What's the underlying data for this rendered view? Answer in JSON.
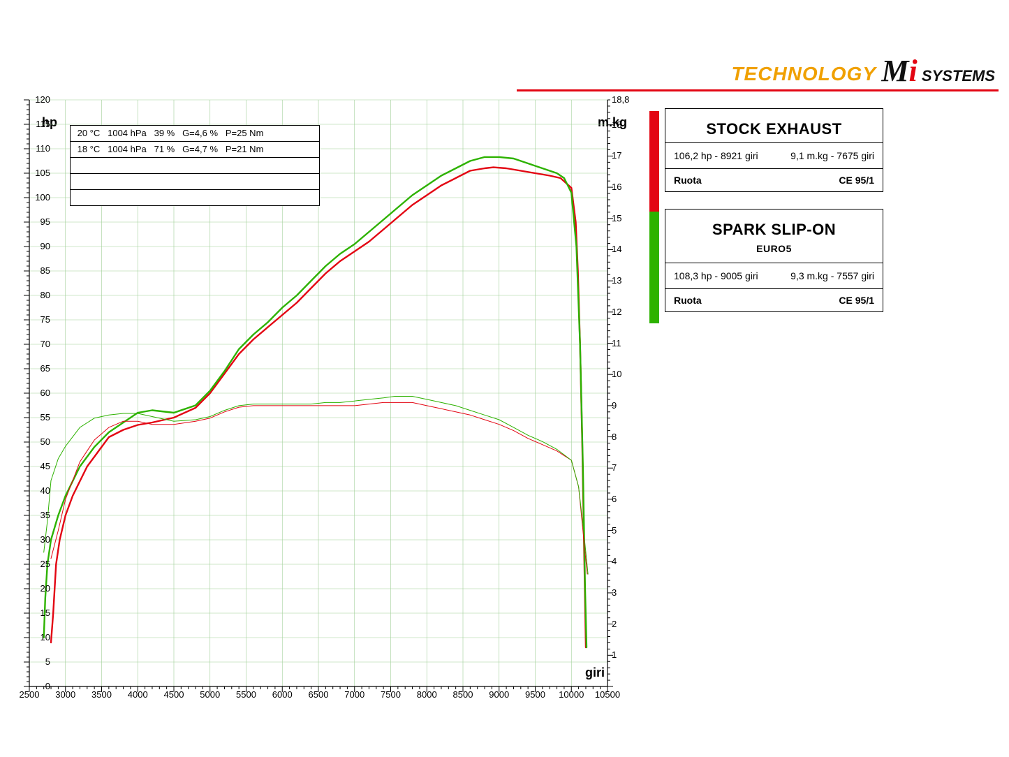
{
  "brand": {
    "tech": "TECHNOLOGY",
    "logo_main": "M",
    "logo_i": "i",
    "logo_sys": "SYSTEMS"
  },
  "chart": {
    "type": "line",
    "background_color": "#ffffff",
    "grid_color": "#9fcf96",
    "grid_width": 0.6,
    "tick_color": "#000000",
    "x": {
      "label": "giri",
      "min": 2500,
      "max": 10500,
      "step": 500,
      "minor": 100
    },
    "y_left": {
      "label": "hp",
      "min": 0,
      "max": 120,
      "step": 5,
      "minor": 1
    },
    "y_right": {
      "label": "m.kg",
      "min": 0,
      "max": 18.8,
      "step": 1,
      "minor": 0.2,
      "top_label": "18,8"
    },
    "hp_line_width": 2.4,
    "torque_line_width": 1.0,
    "colors": {
      "red": "#e30613",
      "green": "#2db200"
    },
    "series": [
      {
        "name": "hp_stock",
        "axis": "left",
        "color": "#e30613",
        "width": 2.4,
        "points": [
          [
            2800,
            9
          ],
          [
            2830,
            15
          ],
          [
            2870,
            25
          ],
          [
            2920,
            30
          ],
          [
            3000,
            35
          ],
          [
            3100,
            39
          ],
          [
            3200,
            42
          ],
          [
            3300,
            45
          ],
          [
            3400,
            47
          ],
          [
            3500,
            49
          ],
          [
            3600,
            51
          ],
          [
            3800,
            52.5
          ],
          [
            4000,
            53.5
          ],
          [
            4200,
            54
          ],
          [
            4500,
            55
          ],
          [
            4800,
            57
          ],
          [
            5000,
            60
          ],
          [
            5200,
            64
          ],
          [
            5400,
            68
          ],
          [
            5600,
            71
          ],
          [
            5800,
            73.5
          ],
          [
            6000,
            76
          ],
          [
            6200,
            78.5
          ],
          [
            6400,
            81.5
          ],
          [
            6600,
            84.5
          ],
          [
            6800,
            87
          ],
          [
            7000,
            89
          ],
          [
            7200,
            91
          ],
          [
            7400,
            93.5
          ],
          [
            7600,
            96
          ],
          [
            7800,
            98.5
          ],
          [
            8000,
            100.5
          ],
          [
            8200,
            102.5
          ],
          [
            8400,
            104
          ],
          [
            8600,
            105.5
          ],
          [
            8800,
            106
          ],
          [
            8921,
            106.2
          ],
          [
            9100,
            106
          ],
          [
            9300,
            105.5
          ],
          [
            9500,
            105
          ],
          [
            9700,
            104.5
          ],
          [
            9850,
            104
          ],
          [
            10000,
            102
          ],
          [
            10060,
            95
          ],
          [
            10090,
            85
          ],
          [
            10120,
            70
          ],
          [
            10150,
            50
          ],
          [
            10180,
            25
          ],
          [
            10200,
            8
          ]
        ]
      },
      {
        "name": "hp_slipon",
        "axis": "left",
        "color": "#2db200",
        "width": 2.4,
        "points": [
          [
            2700,
            10
          ],
          [
            2720,
            18
          ],
          [
            2750,
            25
          ],
          [
            2800,
            30
          ],
          [
            2900,
            35
          ],
          [
            3000,
            39
          ],
          [
            3100,
            42
          ],
          [
            3200,
            45
          ],
          [
            3400,
            49
          ],
          [
            3600,
            52
          ],
          [
            3800,
            54
          ],
          [
            4000,
            56
          ],
          [
            4200,
            56.5
          ],
          [
            4500,
            56
          ],
          [
            4800,
            57.5
          ],
          [
            5000,
            60.5
          ],
          [
            5200,
            64.5
          ],
          [
            5400,
            69
          ],
          [
            5600,
            72
          ],
          [
            5800,
            74.5
          ],
          [
            6000,
            77.5
          ],
          [
            6200,
            80
          ],
          [
            6400,
            83
          ],
          [
            6600,
            86
          ],
          [
            6800,
            88.5
          ],
          [
            7000,
            90.5
          ],
          [
            7200,
            93
          ],
          [
            7400,
            95.5
          ],
          [
            7600,
            98
          ],
          [
            7800,
            100.5
          ],
          [
            8000,
            102.5
          ],
          [
            8200,
            104.5
          ],
          [
            8400,
            106
          ],
          [
            8600,
            107.5
          ],
          [
            8800,
            108.3
          ],
          [
            9005,
            108.3
          ],
          [
            9200,
            108
          ],
          [
            9400,
            107
          ],
          [
            9600,
            106
          ],
          [
            9800,
            105
          ],
          [
            9900,
            104
          ],
          [
            10000,
            101
          ],
          [
            10070,
            90
          ],
          [
            10120,
            70
          ],
          [
            10160,
            45
          ],
          [
            10190,
            20
          ],
          [
            10210,
            8
          ]
        ]
      },
      {
        "name": "torque_stock",
        "axis": "right",
        "color": "#e30613",
        "width": 1.0,
        "points": [
          [
            2800,
            4.1
          ],
          [
            2900,
            5.0
          ],
          [
            3000,
            6.0
          ],
          [
            3200,
            7.2
          ],
          [
            3400,
            7.9
          ],
          [
            3600,
            8.3
          ],
          [
            3800,
            8.5
          ],
          [
            4000,
            8.5
          ],
          [
            4200,
            8.4
          ],
          [
            4500,
            8.4
          ],
          [
            4800,
            8.5
          ],
          [
            5000,
            8.6
          ],
          [
            5200,
            8.8
          ],
          [
            5400,
            8.95
          ],
          [
            5600,
            9.0
          ],
          [
            5800,
            9.0
          ],
          [
            6000,
            9.0
          ],
          [
            6200,
            9.0
          ],
          [
            6400,
            9.0
          ],
          [
            6600,
            9.0
          ],
          [
            6800,
            9.0
          ],
          [
            7000,
            9.0
          ],
          [
            7200,
            9.05
          ],
          [
            7400,
            9.1
          ],
          [
            7600,
            9.1
          ],
          [
            7675,
            9.1
          ],
          [
            7800,
            9.1
          ],
          [
            8000,
            9.0
          ],
          [
            8200,
            8.9
          ],
          [
            8400,
            8.8
          ],
          [
            8600,
            8.7
          ],
          [
            8800,
            8.55
          ],
          [
            9000,
            8.4
          ],
          [
            9200,
            8.2
          ],
          [
            9400,
            7.95
          ],
          [
            9600,
            7.75
          ],
          [
            9800,
            7.55
          ],
          [
            10000,
            7.25
          ],
          [
            10100,
            6.4
          ],
          [
            10160,
            5.0
          ],
          [
            10220,
            3.6
          ]
        ]
      },
      {
        "name": "torque_slipon",
        "axis": "right",
        "color": "#2db200",
        "width": 1.0,
        "points": [
          [
            2700,
            4.3
          ],
          [
            2750,
            5.3
          ],
          [
            2800,
            6.6
          ],
          [
            2900,
            7.3
          ],
          [
            3000,
            7.7
          ],
          [
            3200,
            8.3
          ],
          [
            3400,
            8.6
          ],
          [
            3600,
            8.7
          ],
          [
            3800,
            8.75
          ],
          [
            4000,
            8.75
          ],
          [
            4200,
            8.65
          ],
          [
            4500,
            8.5
          ],
          [
            4800,
            8.55
          ],
          [
            5000,
            8.65
          ],
          [
            5200,
            8.85
          ],
          [
            5400,
            9.0
          ],
          [
            5600,
            9.05
          ],
          [
            5800,
            9.05
          ],
          [
            6000,
            9.05
          ],
          [
            6200,
            9.05
          ],
          [
            6400,
            9.05
          ],
          [
            6600,
            9.1
          ],
          [
            6800,
            9.1
          ],
          [
            7000,
            9.15
          ],
          [
            7200,
            9.2
          ],
          [
            7400,
            9.25
          ],
          [
            7557,
            9.3
          ],
          [
            7700,
            9.3
          ],
          [
            7800,
            9.3
          ],
          [
            8000,
            9.2
          ],
          [
            8200,
            9.1
          ],
          [
            8400,
            9.0
          ],
          [
            8600,
            8.85
          ],
          [
            8800,
            8.7
          ],
          [
            9000,
            8.55
          ],
          [
            9200,
            8.3
          ],
          [
            9400,
            8.05
          ],
          [
            9600,
            7.85
          ],
          [
            9800,
            7.6
          ],
          [
            10000,
            7.25
          ],
          [
            10100,
            6.4
          ],
          [
            10170,
            5.0
          ],
          [
            10230,
            3.6
          ]
        ]
      }
    ],
    "info_rows": [
      " 20 °C   1004 hPa   39 %   G=4,6 %   P=25 Nm",
      " 18 °C   1004 hPa   71 %   G=4,7 %   P=21 Nm",
      "",
      "",
      ""
    ]
  },
  "panels": [
    {
      "swatch": "#e30613",
      "title": "STOCK EXHAUST",
      "subtitle": "",
      "hp": "106,2 hp - 8921 giri",
      "torque": "9,1 m.kg - 7675 giri",
      "foot_left": "Ruota",
      "foot_right": "CE 95/1"
    },
    {
      "swatch": "#2db200",
      "title": "SPARK SLIP-ON",
      "subtitle": "EURO5",
      "hp": "108,3 hp - 9005 giri",
      "torque": "9,3 m.kg - 7557 giri",
      "foot_left": "Ruota",
      "foot_right": "CE 95/1"
    }
  ]
}
